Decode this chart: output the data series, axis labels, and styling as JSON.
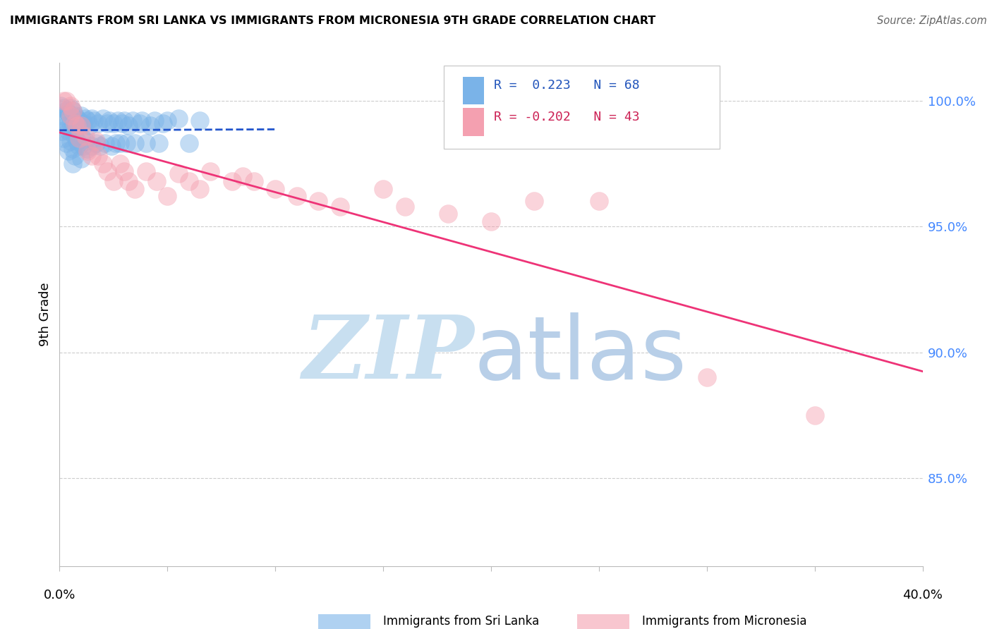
{
  "title": "IMMIGRANTS FROM SRI LANKA VS IMMIGRANTS FROM MICRONESIA 9TH GRADE CORRELATION CHART",
  "source": "Source: ZipAtlas.com",
  "ylabel": "9th Grade",
  "sri_lanka_R": 0.223,
  "sri_lanka_N": 68,
  "micronesia_R": -0.202,
  "micronesia_N": 43,
  "sri_lanka_color": "#7ab3e8",
  "micronesia_color": "#f4a0b0",
  "sri_lanka_line_color": "#2255cc",
  "micronesia_line_color": "#ee3377",
  "xlim": [
    0.0,
    0.4
  ],
  "ylim": [
    0.815,
    1.015
  ],
  "ytick_values": [
    1.0,
    0.95,
    0.9,
    0.85
  ],
  "watermark_zip_color": "#c8dff0",
  "watermark_atlas_color": "#b8cfe8",
  "sri_lanka_x": [
    0.0005,
    0.001,
    0.001,
    0.002,
    0.002,
    0.002,
    0.003,
    0.003,
    0.003,
    0.004,
    0.004,
    0.004,
    0.005,
    0.005,
    0.005,
    0.006,
    0.006,
    0.006,
    0.006,
    0.007,
    0.007,
    0.007,
    0.008,
    0.008,
    0.009,
    0.009,
    0.01,
    0.01,
    0.01,
    0.011,
    0.011,
    0.012,
    0.012,
    0.013,
    0.013,
    0.014,
    0.015,
    0.015,
    0.016,
    0.017,
    0.018,
    0.019,
    0.02,
    0.021,
    0.022,
    0.023,
    0.024,
    0.025,
    0.026,
    0.027,
    0.028,
    0.029,
    0.03,
    0.031,
    0.032,
    0.034,
    0.035,
    0.037,
    0.038,
    0.04,
    0.042,
    0.044,
    0.046,
    0.048,
    0.05,
    0.055,
    0.06,
    0.065
  ],
  "sri_lanka_y": [
    0.998,
    0.994,
    0.988,
    0.997,
    0.992,
    0.985,
    0.996,
    0.99,
    0.983,
    0.995,
    0.988,
    0.98,
    0.997,
    0.991,
    0.984,
    0.996,
    0.989,
    0.981,
    0.975,
    0.994,
    0.986,
    0.978,
    0.993,
    0.984,
    0.992,
    0.982,
    0.994,
    0.986,
    0.977,
    0.991,
    0.982,
    0.993,
    0.984,
    0.992,
    0.981,
    0.99,
    0.993,
    0.982,
    0.992,
    0.983,
    0.991,
    0.982,
    0.993,
    0.983,
    0.991,
    0.992,
    0.982,
    0.991,
    0.983,
    0.992,
    0.983,
    0.991,
    0.992,
    0.983,
    0.99,
    0.992,
    0.983,
    0.991,
    0.992,
    0.983,
    0.99,
    0.992,
    0.983,
    0.991,
    0.992,
    0.993,
    0.983,
    0.992
  ],
  "micronesia_x": [
    0.002,
    0.003,
    0.005,
    0.005,
    0.006,
    0.007,
    0.008,
    0.009,
    0.01,
    0.012,
    0.013,
    0.015,
    0.017,
    0.018,
    0.02,
    0.022,
    0.025,
    0.028,
    0.03,
    0.032,
    0.035,
    0.04,
    0.045,
    0.05,
    0.055,
    0.06,
    0.065,
    0.07,
    0.08,
    0.085,
    0.09,
    0.1,
    0.11,
    0.12,
    0.13,
    0.15,
    0.16,
    0.18,
    0.2,
    0.22,
    0.25,
    0.3,
    0.35
  ],
  "micronesia_y": [
    1.0,
    1.0,
    0.998,
    0.994,
    0.996,
    0.991,
    0.99,
    0.985,
    0.99,
    0.986,
    0.98,
    0.978,
    0.984,
    0.978,
    0.975,
    0.972,
    0.968,
    0.975,
    0.972,
    0.968,
    0.965,
    0.972,
    0.968,
    0.962,
    0.971,
    0.968,
    0.965,
    0.972,
    0.968,
    0.97,
    0.968,
    0.965,
    0.962,
    0.96,
    0.958,
    0.965,
    0.958,
    0.955,
    0.952,
    0.96,
    0.96,
    0.89,
    0.875
  ]
}
